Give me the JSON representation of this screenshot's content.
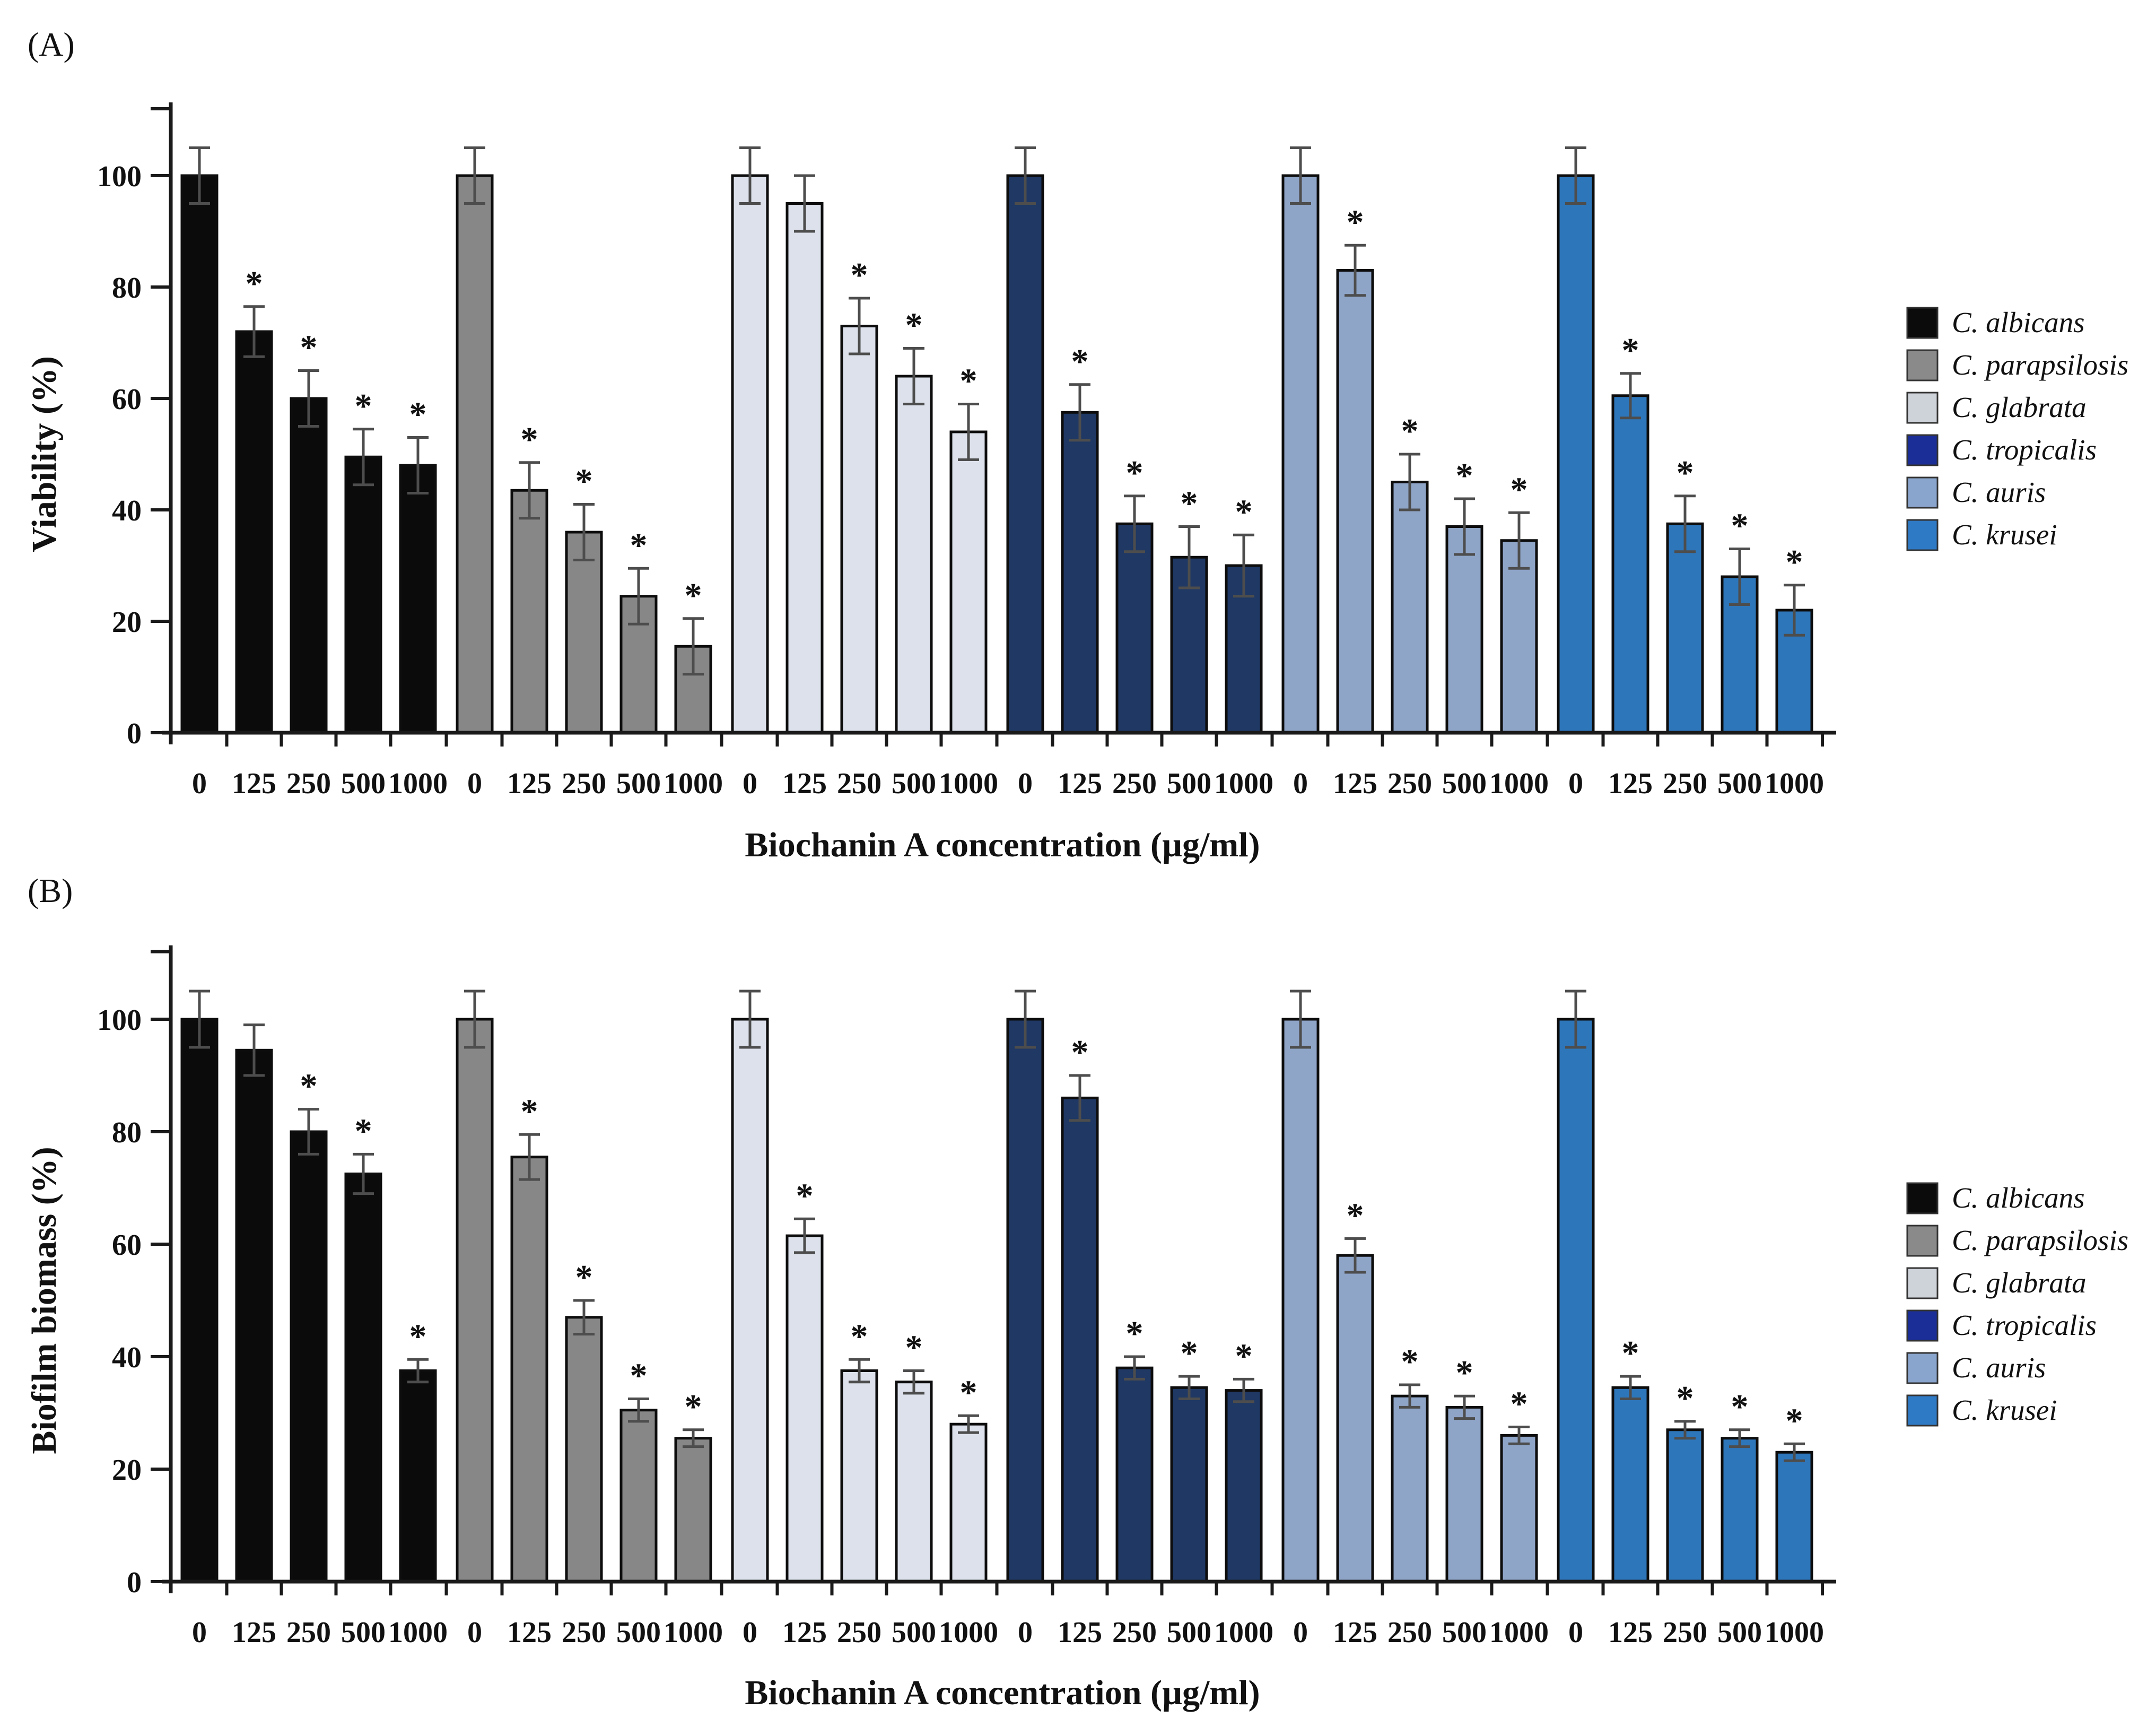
{
  "styles": {
    "background": "#ffffff",
    "axis_color": "#1a1a1a",
    "error_bar_color": "#4d4d4d",
    "text_color": "#111111",
    "bar_border_color": "#0d0d0d"
  },
  "legend": {
    "items": [
      {
        "label": "C. albicans",
        "color": "#0b0b0b"
      },
      {
        "label": "C. parapsilosis",
        "color": "#8a8a8a"
      },
      {
        "label": "C. glabrata",
        "color": "#ced2d9"
      },
      {
        "label": "C. tropicalis",
        "color": "#1b2d97"
      },
      {
        "label": "C. auris",
        "color": "#8aa5cd"
      },
      {
        "label": "C. krusei",
        "color": "#2f7ac5"
      }
    ]
  },
  "chart_data": [
    {
      "type": "bar",
      "panel_label": "(A)",
      "ylabel": "Viability (%)",
      "xlabel": "Biochanin A concentration (µg/ml)",
      "ylim": [
        0,
        112
      ],
      "y_ticks": [
        0,
        20,
        40,
        60,
        80,
        100
      ],
      "grid": false,
      "legend_position": "right",
      "significance_marker": "*",
      "categories": [
        "0",
        "125",
        "250",
        "500",
        "1000"
      ],
      "series": [
        {
          "name": "C. albicans",
          "color": "#0b0b0b",
          "values": [
            100,
            72,
            60,
            49.5,
            48
          ],
          "errors": [
            5,
            4.5,
            5,
            5,
            5
          ],
          "significant": [
            false,
            true,
            true,
            true,
            true
          ]
        },
        {
          "name": "C. parapsilosis",
          "color": "#878787",
          "values": [
            100,
            43.5,
            36,
            24.5,
            15.5
          ],
          "errors": [
            5,
            5,
            5,
            5,
            5
          ],
          "significant": [
            false,
            true,
            true,
            true,
            true
          ]
        },
        {
          "name": "C. glabrata",
          "color": "#dce1eb",
          "values": [
            100,
            95,
            73,
            64,
            54
          ],
          "errors": [
            5,
            5,
            5,
            5,
            5
          ],
          "significant": [
            false,
            false,
            true,
            true,
            true
          ]
        },
        {
          "name": "C. tropicalis",
          "color": "#1f3864",
          "values": [
            100,
            57.5,
            37.5,
            31.5,
            30
          ],
          "errors": [
            5,
            5,
            5,
            5.5,
            5.5
          ],
          "significant": [
            false,
            true,
            true,
            true,
            true
          ]
        },
        {
          "name": "C. auris",
          "color": "#8fa5c8",
          "values": [
            100,
            83,
            45,
            37,
            34.5
          ],
          "errors": [
            5,
            4.5,
            5,
            5,
            5
          ],
          "significant": [
            false,
            true,
            true,
            true,
            true
          ]
        },
        {
          "name": "C. krusei",
          "color": "#2e76ba",
          "values": [
            100,
            60.5,
            37.5,
            28,
            22
          ],
          "errors": [
            5,
            4,
            5,
            5,
            4.5
          ],
          "significant": [
            false,
            true,
            true,
            true,
            true
          ]
        }
      ]
    },
    {
      "type": "bar",
      "panel_label": "(B)",
      "ylabel": "Biofilm biomass (%)",
      "xlabel": "Biochanin A concentration (µg/ml)",
      "ylim": [
        0,
        112
      ],
      "y_ticks": [
        0,
        20,
        40,
        60,
        80,
        100
      ],
      "grid": false,
      "legend_position": "right",
      "significance_marker": "*",
      "categories": [
        "0",
        "125",
        "250",
        "500",
        "1000"
      ],
      "series": [
        {
          "name": "C. albicans",
          "color": "#0b0b0b",
          "values": [
            100,
            94.5,
            80,
            72.5,
            37.5
          ],
          "errors": [
            5,
            4.5,
            4,
            3.5,
            2
          ],
          "significant": [
            false,
            false,
            true,
            true,
            true
          ]
        },
        {
          "name": "C. parapsilosis",
          "color": "#878787",
          "values": [
            100,
            75.5,
            47,
            30.5,
            25.5
          ],
          "errors": [
            5,
            4,
            3,
            2,
            1.5
          ],
          "significant": [
            false,
            true,
            true,
            true,
            true
          ]
        },
        {
          "name": "C. glabrata",
          "color": "#dce1eb",
          "values": [
            100,
            61.5,
            37.5,
            35.5,
            28
          ],
          "errors": [
            5,
            3,
            2,
            2,
            1.5
          ],
          "significant": [
            false,
            true,
            true,
            true,
            true
          ]
        },
        {
          "name": "C. tropicalis",
          "color": "#1f3864",
          "values": [
            100,
            86,
            38,
            34.5,
            34
          ],
          "errors": [
            5,
            4,
            2,
            2,
            2
          ],
          "significant": [
            false,
            true,
            true,
            true,
            true
          ]
        },
        {
          "name": "C. auris",
          "color": "#8fa5c8",
          "values": [
            100,
            58,
            33,
            31,
            26
          ],
          "errors": [
            5,
            3,
            2,
            2,
            1.5
          ],
          "significant": [
            false,
            true,
            true,
            true,
            true
          ]
        },
        {
          "name": "C. krusei",
          "color": "#2e76ba",
          "values": [
            100,
            34.5,
            27,
            25.5,
            23
          ],
          "errors": [
            5,
            2,
            1.5,
            1.5,
            1.5
          ],
          "significant": [
            false,
            true,
            true,
            true,
            true
          ]
        }
      ]
    }
  ]
}
